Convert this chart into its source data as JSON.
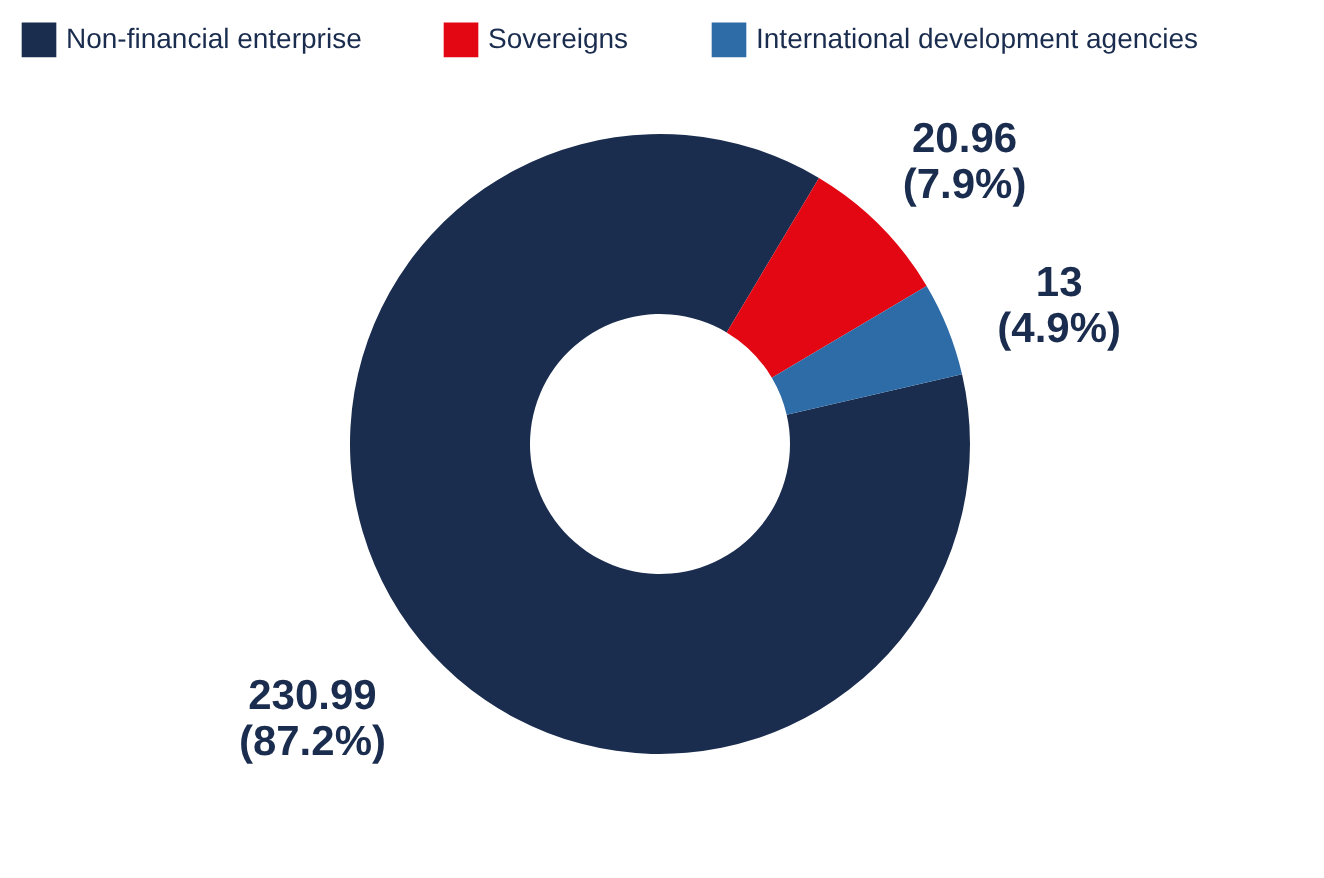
{
  "chart_data": {
    "type": "donut",
    "categories": [
      "Non-financial enterprise",
      "Sovereigns",
      "International development agencies"
    ],
    "values": [
      230.99,
      20.96,
      13
    ],
    "colors": [
      "#1b2d4f",
      "#e30613",
      "#2e6ca8"
    ],
    "value_labels": [
      "230.99 (87.2%)",
      "20.96 (7.9%)",
      "13 (4.9%)"
    ],
    "legend": "top"
  }
}
